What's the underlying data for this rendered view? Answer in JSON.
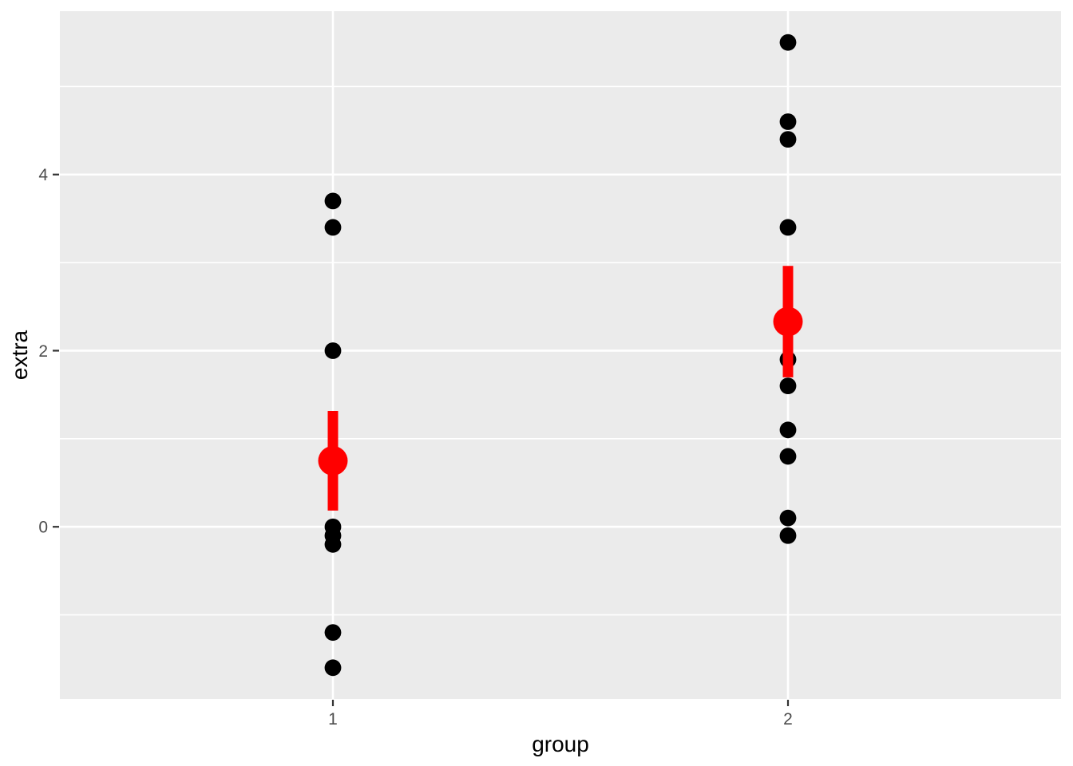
{
  "chart_data": {
    "type": "scatter",
    "title": "",
    "xlabel": "group",
    "ylabel": "extra",
    "x_categories": [
      "1",
      "2"
    ],
    "x_positions": [
      1,
      2
    ],
    "xlim": [
      0.4,
      2.6
    ],
    "ylim": [
      -1.955,
      5.855
    ],
    "y_major_ticks": [
      0,
      2,
      4
    ],
    "y_tick_labels": [
      "0",
      "2",
      "4"
    ],
    "y_minor_gridlines": [
      -1,
      1,
      3,
      5
    ],
    "grid": "on",
    "legend": "none",
    "series": [
      {
        "name": "group-1-points",
        "x": 1,
        "values": [
          0.7,
          -1.6,
          -0.2,
          -1.2,
          -0.1,
          3.4,
          3.7,
          0.8,
          0.0,
          2.0
        ]
      },
      {
        "name": "group-2-points",
        "x": 2,
        "values": [
          1.9,
          0.8,
          1.1,
          0.1,
          -0.1,
          4.4,
          5.5,
          1.6,
          4.6,
          3.4
        ]
      }
    ],
    "summary_mean_se": [
      {
        "x": 1,
        "mean": 0.75,
        "lower": 0.184,
        "upper": 1.316
      },
      {
        "x": 2,
        "mean": 2.33,
        "lower": 1.697,
        "upper": 2.963
      }
    ],
    "colors": {
      "panel_background": "#EBEBEB",
      "gridline": "#FFFFFF",
      "point": "#000000",
      "summary": "#FF0000",
      "tick_label": "#4D4D4D",
      "tick_mark": "#333333",
      "axis_title": "#000000",
      "figure_background": "#FFFFFF"
    }
  }
}
